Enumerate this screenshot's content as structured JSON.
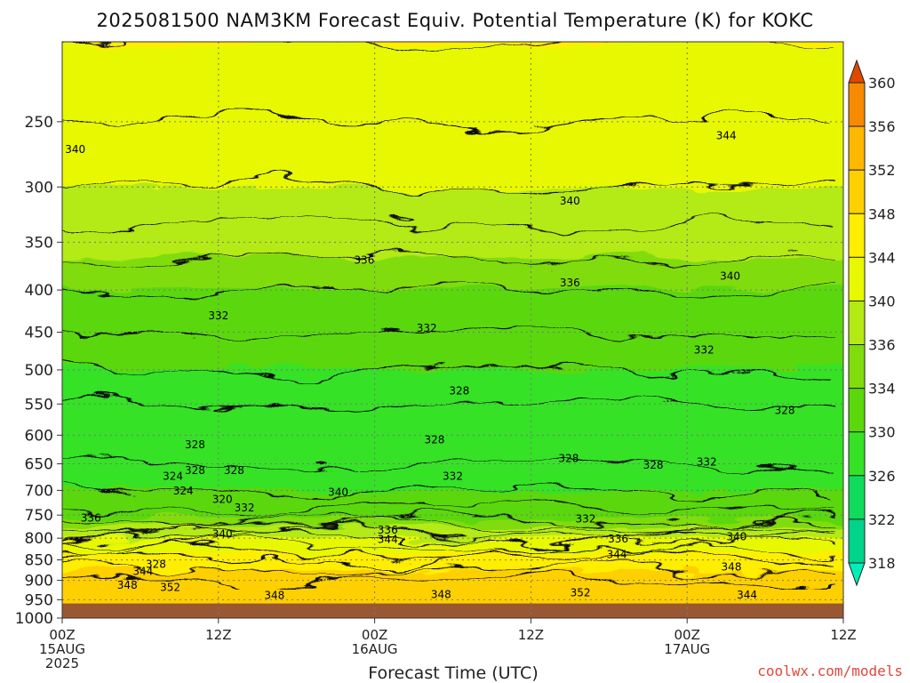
{
  "chart_data": {
    "type": "time-height filled contour",
    "title": "2025081500 NAM3KM Forecast Equiv. Potential Temperature (K) for KOKC",
    "xlabel": "Forecast Time (UTC)",
    "ylabel": "",
    "x_ticks": [
      {
        "hour": 0,
        "lines": [
          "00Z",
          "15AUG",
          "2025"
        ]
      },
      {
        "hour": 12,
        "lines": [
          "12Z"
        ]
      },
      {
        "hour": 24,
        "lines": [
          "00Z",
          "16AUG"
        ]
      },
      {
        "hour": 36,
        "lines": [
          "12Z"
        ]
      },
      {
        "hour": 48,
        "lines": [
          "00Z",
          "17AUG"
        ]
      },
      {
        "hour": 60,
        "lines": [
          "12Z"
        ]
      }
    ],
    "x_range_hours": [
      0,
      60
    ],
    "y_range_hPa": [
      200,
      1000
    ],
    "y_scale": "log",
    "y_ticks": [
      250,
      300,
      350,
      400,
      450,
      500,
      550,
      600,
      650,
      700,
      750,
      800,
      850,
      900,
      950,
      1000
    ],
    "grid": true,
    "colorbar": {
      "levels": [
        318,
        322,
        326,
        330,
        334,
        336,
        340,
        344,
        348,
        352,
        356,
        360
      ],
      "colors": [
        "#00d48a",
        "#10dc5c",
        "#36e226",
        "#5ad80a",
        "#80dc0a",
        "#b4ea14",
        "#e8f800",
        "#ffee00",
        "#ffd000",
        "#ffb800",
        "#f88a00",
        "#e04800"
      ],
      "under_color": "#00f0b8",
      "over_color": "#e04800",
      "position": "right"
    },
    "profile_theta_e_K": {
      "pressure_hPa": [
        200,
        250,
        300,
        350,
        400,
        450,
        500,
        550,
        600,
        650,
        700,
        750,
        800,
        850,
        900,
        950
      ],
      "values": [
        344,
        342,
        340,
        337,
        334,
        332,
        330,
        328,
        327,
        328,
        330,
        333,
        340,
        346,
        350,
        351
      ]
    },
    "surface_fill": {
      "pressure_hPa": 960,
      "color": "#9a5832"
    },
    "contour_labels": [
      {
        "text": "340",
        "hour": 1.0,
        "p": 270
      },
      {
        "text": "344",
        "hour": 51.0,
        "p": 260
      },
      {
        "text": "340",
        "hour": 39.0,
        "p": 312
      },
      {
        "text": "336",
        "hour": 23.2,
        "p": 368
      },
      {
        "text": "336",
        "hour": 39.0,
        "p": 392
      },
      {
        "text": "340",
        "hour": 51.3,
        "p": 385
      },
      {
        "text": "332",
        "hour": 12.0,
        "p": 430
      },
      {
        "text": "332",
        "hour": 28.0,
        "p": 445
      },
      {
        "text": "332",
        "hour": 49.3,
        "p": 473
      },
      {
        "text": "328",
        "hour": 30.5,
        "p": 530
      },
      {
        "text": "328",
        "hour": 55.5,
        "p": 560
      },
      {
        "text": "328",
        "hour": 10.2,
        "p": 616
      },
      {
        "text": "328",
        "hour": 28.6,
        "p": 608
      },
      {
        "text": "328",
        "hour": 38.9,
        "p": 640
      },
      {
        "text": "328",
        "hour": 45.4,
        "p": 652
      },
      {
        "text": "332",
        "hour": 49.5,
        "p": 647
      },
      {
        "text": "324",
        "hour": 8.5,
        "p": 673
      },
      {
        "text": "328",
        "hour": 10.2,
        "p": 662
      },
      {
        "text": "328",
        "hour": 13.2,
        "p": 662
      },
      {
        "text": "332",
        "hour": 30.0,
        "p": 673
      },
      {
        "text": "324",
        "hour": 9.3,
        "p": 701
      },
      {
        "text": "340",
        "hour": 21.2,
        "p": 704
      },
      {
        "text": "320",
        "hour": 12.3,
        "p": 718
      },
      {
        "text": "332",
        "hour": 14.0,
        "p": 735
      },
      {
        "text": "336",
        "hour": 2.2,
        "p": 756
      },
      {
        "text": "340",
        "hour": 12.3,
        "p": 791
      },
      {
        "text": "336",
        "hour": 25.0,
        "p": 782
      },
      {
        "text": "344",
        "hour": 25.0,
        "p": 803
      },
      {
        "text": "332",
        "hour": 40.2,
        "p": 758
      },
      {
        "text": "336",
        "hour": 42.7,
        "p": 802
      },
      {
        "text": "344",
        "hour": 42.6,
        "p": 837
      },
      {
        "text": "340",
        "hour": 51.8,
        "p": 797
      },
      {
        "text": "348",
        "hour": 51.4,
        "p": 867
      },
      {
        "text": "328",
        "hour": 7.2,
        "p": 860
      },
      {
        "text": "344",
        "hour": 6.2,
        "p": 878
      },
      {
        "text": "348",
        "hour": 5.0,
        "p": 912
      },
      {
        "text": "352",
        "hour": 8.3,
        "p": 918
      },
      {
        "text": "348",
        "hour": 16.3,
        "p": 939
      },
      {
        "text": "348",
        "hour": 29.1,
        "p": 936
      },
      {
        "text": "352",
        "hour": 39.8,
        "p": 932
      },
      {
        "text": "344",
        "hour": 52.6,
        "p": 938
      }
    ]
  },
  "credit": "coolwx.com/models"
}
